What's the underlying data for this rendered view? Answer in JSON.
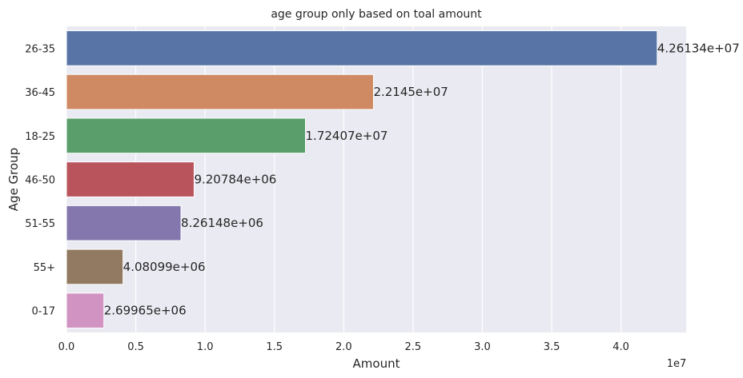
{
  "chart_data": {
    "type": "bar",
    "orientation": "horizontal",
    "title": "age group only based on toal amount",
    "xlabel": "Amount",
    "ylabel": "Age Group",
    "x_offset_label": "1e7",
    "xlim": [
      0,
      4.47
    ],
    "grid": true,
    "categories": [
      "26-35",
      "36-45",
      "18-25",
      "46-50",
      "51-55",
      "55+",
      "0-17"
    ],
    "values": [
      42613400,
      22145000,
      17240700,
      9207840,
      8261480,
      4080990,
      2699650
    ],
    "value_labels": [
      "4.26134e+07",
      "2.2145e+07",
      "1.72407e+07",
      "9.20784e+06",
      "8.26148e+06",
      "4.08099e+06",
      "2.69965e+06"
    ],
    "x_ticks": [
      0,
      0.5,
      1.0,
      1.5,
      2.0,
      2.5,
      3.0,
      3.5,
      4.0
    ],
    "x_tick_labels": [
      "0.0",
      "0.5",
      "1.0",
      "1.5",
      "2.0",
      "2.5",
      "3.0",
      "3.5",
      "4.0"
    ],
    "colors": [
      "#5874a6",
      "#cf8a64",
      "#5a9e6c",
      "#b9545d",
      "#8377ad",
      "#917962",
      "#d194c2"
    ],
    "background": "#eaeaf2"
  }
}
